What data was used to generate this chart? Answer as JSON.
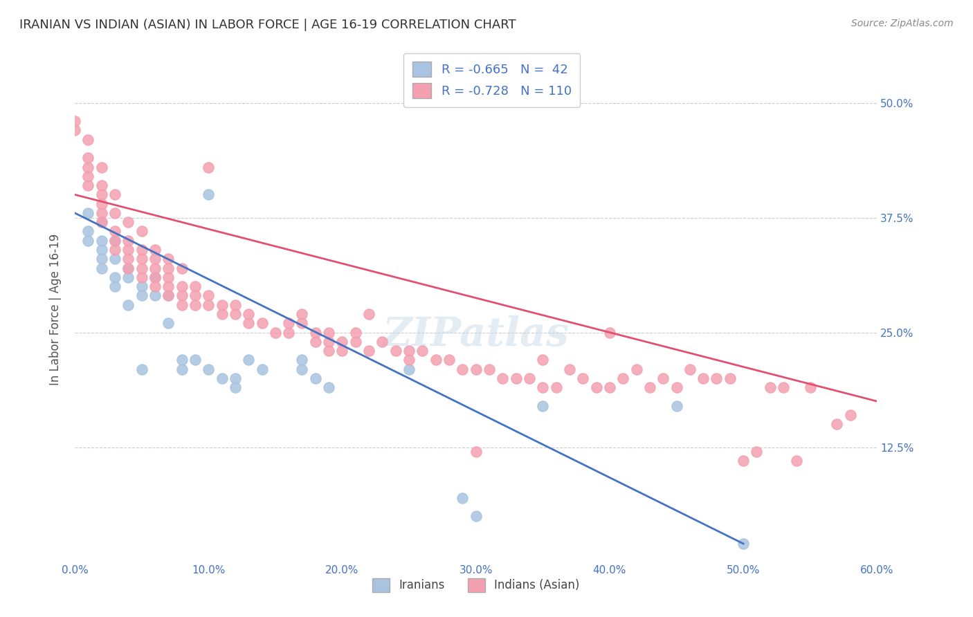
{
  "title": "IRANIAN VS INDIAN (ASIAN) IN LABOR FORCE | AGE 16-19 CORRELATION CHART",
  "source": "Source: ZipAtlas.com",
  "ylabel": "In Labor Force | Age 16-19",
  "xlim": [
    0.0,
    0.6
  ],
  "ylim": [
    0.0,
    0.55
  ],
  "watermark": "ZIPatlas",
  "legend_R_iranian": "-0.665",
  "legend_N_iranian": "42",
  "legend_R_indian": "-0.728",
  "legend_N_indian": "110",
  "iranian_color": "#a8c4e0",
  "indian_color": "#f4a0b0",
  "iranian_line_color": "#4472c4",
  "indian_line_color": "#e05070",
  "axis_label_color": "#4472c4",
  "title_color": "#333333",
  "iranian_points": [
    [
      0.01,
      0.38
    ],
    [
      0.01,
      0.36
    ],
    [
      0.01,
      0.35
    ],
    [
      0.02,
      0.37
    ],
    [
      0.02,
      0.35
    ],
    [
      0.02,
      0.34
    ],
    [
      0.02,
      0.33
    ],
    [
      0.02,
      0.32
    ],
    [
      0.03,
      0.35
    ],
    [
      0.03,
      0.33
    ],
    [
      0.03,
      0.31
    ],
    [
      0.03,
      0.3
    ],
    [
      0.04,
      0.32
    ],
    [
      0.04,
      0.31
    ],
    [
      0.04,
      0.28
    ],
    [
      0.05,
      0.3
    ],
    [
      0.05,
      0.29
    ],
    [
      0.05,
      0.21
    ],
    [
      0.06,
      0.31
    ],
    [
      0.06,
      0.29
    ],
    [
      0.07,
      0.29
    ],
    [
      0.07,
      0.26
    ],
    [
      0.08,
      0.22
    ],
    [
      0.08,
      0.21
    ],
    [
      0.09,
      0.22
    ],
    [
      0.1,
      0.21
    ],
    [
      0.1,
      0.4
    ],
    [
      0.11,
      0.2
    ],
    [
      0.12,
      0.2
    ],
    [
      0.12,
      0.19
    ],
    [
      0.13,
      0.22
    ],
    [
      0.14,
      0.21
    ],
    [
      0.17,
      0.21
    ],
    [
      0.17,
      0.22
    ],
    [
      0.18,
      0.2
    ],
    [
      0.19,
      0.19
    ],
    [
      0.25,
      0.21
    ],
    [
      0.29,
      0.07
    ],
    [
      0.3,
      0.05
    ],
    [
      0.35,
      0.17
    ],
    [
      0.45,
      0.17
    ],
    [
      0.5,
      0.02
    ]
  ],
  "indian_points": [
    [
      0.0,
      0.48
    ],
    [
      0.0,
      0.47
    ],
    [
      0.01,
      0.46
    ],
    [
      0.01,
      0.44
    ],
    [
      0.01,
      0.43
    ],
    [
      0.01,
      0.42
    ],
    [
      0.01,
      0.41
    ],
    [
      0.02,
      0.43
    ],
    [
      0.02,
      0.41
    ],
    [
      0.02,
      0.4
    ],
    [
      0.02,
      0.39
    ],
    [
      0.02,
      0.38
    ],
    [
      0.02,
      0.37
    ],
    [
      0.03,
      0.4
    ],
    [
      0.03,
      0.38
    ],
    [
      0.03,
      0.36
    ],
    [
      0.03,
      0.35
    ],
    [
      0.03,
      0.34
    ],
    [
      0.04,
      0.37
    ],
    [
      0.04,
      0.35
    ],
    [
      0.04,
      0.34
    ],
    [
      0.04,
      0.33
    ],
    [
      0.04,
      0.32
    ],
    [
      0.05,
      0.36
    ],
    [
      0.05,
      0.34
    ],
    [
      0.05,
      0.33
    ],
    [
      0.05,
      0.32
    ],
    [
      0.05,
      0.31
    ],
    [
      0.06,
      0.34
    ],
    [
      0.06,
      0.33
    ],
    [
      0.06,
      0.32
    ],
    [
      0.06,
      0.31
    ],
    [
      0.06,
      0.3
    ],
    [
      0.07,
      0.33
    ],
    [
      0.07,
      0.32
    ],
    [
      0.07,
      0.31
    ],
    [
      0.07,
      0.3
    ],
    [
      0.07,
      0.29
    ],
    [
      0.08,
      0.32
    ],
    [
      0.08,
      0.3
    ],
    [
      0.08,
      0.29
    ],
    [
      0.08,
      0.28
    ],
    [
      0.09,
      0.3
    ],
    [
      0.09,
      0.29
    ],
    [
      0.09,
      0.28
    ],
    [
      0.1,
      0.29
    ],
    [
      0.1,
      0.43
    ],
    [
      0.1,
      0.28
    ],
    [
      0.11,
      0.28
    ],
    [
      0.11,
      0.27
    ],
    [
      0.12,
      0.28
    ],
    [
      0.12,
      0.27
    ],
    [
      0.13,
      0.27
    ],
    [
      0.13,
      0.26
    ],
    [
      0.14,
      0.26
    ],
    [
      0.15,
      0.25
    ],
    [
      0.16,
      0.26
    ],
    [
      0.16,
      0.25
    ],
    [
      0.17,
      0.27
    ],
    [
      0.17,
      0.26
    ],
    [
      0.18,
      0.25
    ],
    [
      0.18,
      0.24
    ],
    [
      0.19,
      0.25
    ],
    [
      0.19,
      0.24
    ],
    [
      0.19,
      0.23
    ],
    [
      0.2,
      0.24
    ],
    [
      0.2,
      0.23
    ],
    [
      0.21,
      0.24
    ],
    [
      0.21,
      0.25
    ],
    [
      0.22,
      0.27
    ],
    [
      0.22,
      0.23
    ],
    [
      0.23,
      0.24
    ],
    [
      0.24,
      0.23
    ],
    [
      0.25,
      0.23
    ],
    [
      0.25,
      0.22
    ],
    [
      0.26,
      0.23
    ],
    [
      0.27,
      0.22
    ],
    [
      0.28,
      0.22
    ],
    [
      0.29,
      0.21
    ],
    [
      0.3,
      0.21
    ],
    [
      0.3,
      0.12
    ],
    [
      0.31,
      0.21
    ],
    [
      0.32,
      0.2
    ],
    [
      0.33,
      0.2
    ],
    [
      0.34,
      0.2
    ],
    [
      0.35,
      0.22
    ],
    [
      0.35,
      0.19
    ],
    [
      0.36,
      0.19
    ],
    [
      0.37,
      0.21
    ],
    [
      0.38,
      0.2
    ],
    [
      0.39,
      0.19
    ],
    [
      0.4,
      0.25
    ],
    [
      0.4,
      0.19
    ],
    [
      0.41,
      0.2
    ],
    [
      0.42,
      0.21
    ],
    [
      0.43,
      0.19
    ],
    [
      0.44,
      0.2
    ],
    [
      0.45,
      0.19
    ],
    [
      0.46,
      0.21
    ],
    [
      0.47,
      0.2
    ],
    [
      0.48,
      0.2
    ],
    [
      0.49,
      0.2
    ],
    [
      0.5,
      0.11
    ],
    [
      0.51,
      0.12
    ],
    [
      0.52,
      0.19
    ],
    [
      0.53,
      0.19
    ],
    [
      0.54,
      0.11
    ],
    [
      0.55,
      0.19
    ],
    [
      0.57,
      0.15
    ],
    [
      0.58,
      0.16
    ]
  ]
}
